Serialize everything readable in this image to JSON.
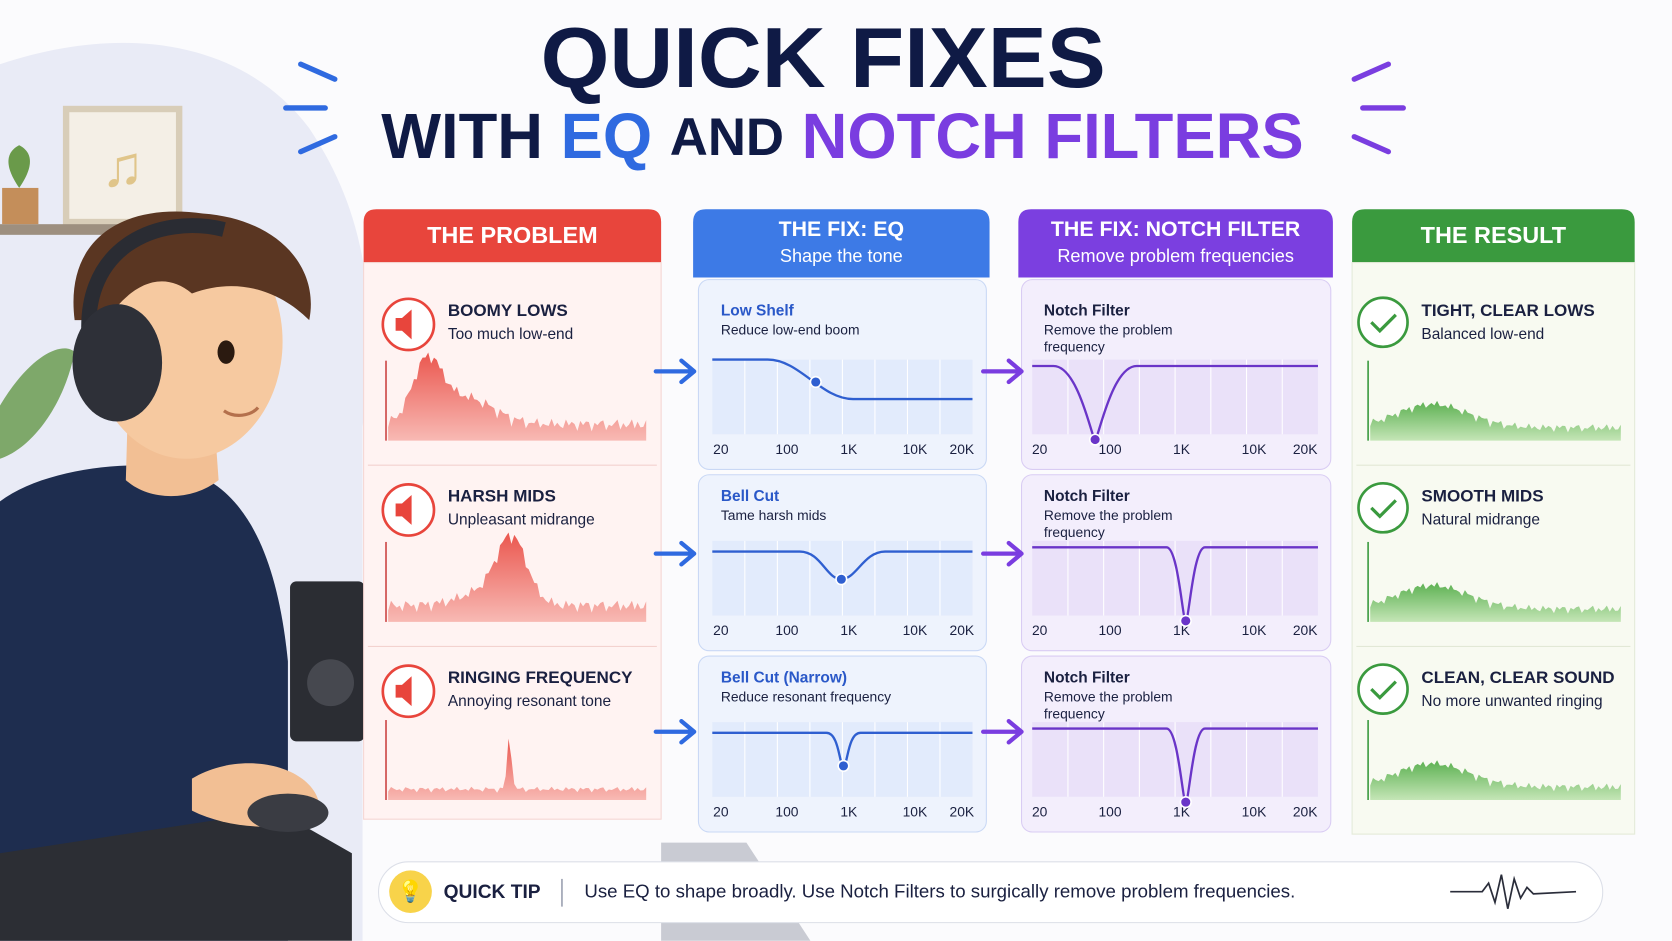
{
  "title": {
    "line1": "QUICK FIXES",
    "line2": [
      "WITH",
      "EQ",
      "AND",
      "NOTCH FILTERS"
    ]
  },
  "columns": [
    {
      "header": "THE PROBLEM",
      "items": [
        {
          "title": "BOOMY LOWS",
          "subtitle": "Too much low-end"
        },
        {
          "title": "HARSH MIDS",
          "subtitle": "Unpleasant midrange"
        },
        {
          "title": "RINGING FREQUENCY",
          "subtitle": "Annoying resonant tone"
        }
      ]
    },
    {
      "header": "THE FIX: EQ",
      "subheader": "Shape the tone",
      "items": [
        {
          "title": "Low Shelf",
          "subtitle": "Reduce low-end boom"
        },
        {
          "title": "Bell Cut",
          "subtitle": "Tame harsh mids"
        },
        {
          "title": "Bell Cut (Narrow)",
          "subtitle": "Reduce resonant frequency"
        }
      ]
    },
    {
      "header": "THE FIX: NOTCH FILTER",
      "subheader": "Remove problem frequencies",
      "items": [
        {
          "title": "Notch Filter",
          "subtitle": [
            "Remove the problem",
            "frequency"
          ]
        },
        {
          "title": "Notch Filter",
          "subtitle": [
            "Remove the problem",
            "frequency"
          ]
        },
        {
          "title": "Notch Filter",
          "subtitle": [
            "Remove the problem",
            "frequency"
          ]
        }
      ]
    },
    {
      "header": "THE RESULT",
      "items": [
        {
          "title": "TIGHT, CLEAR LOWS",
          "subtitle": "Balanced low-end"
        },
        {
          "title": "SMOOTH MIDS",
          "subtitle": "Natural midrange"
        },
        {
          "title": "CLEAN, CLEAR SOUND",
          "subtitle": "No more unwanted ringing"
        }
      ]
    }
  ],
  "frequency_labels": [
    "20",
    "100",
    "1K",
    "10K",
    "20K"
  ],
  "tip": {
    "label": "QUICK TIP",
    "text": "Use EQ to shape broadly. Use Notch Filters to surgically remove problem frequencies."
  }
}
